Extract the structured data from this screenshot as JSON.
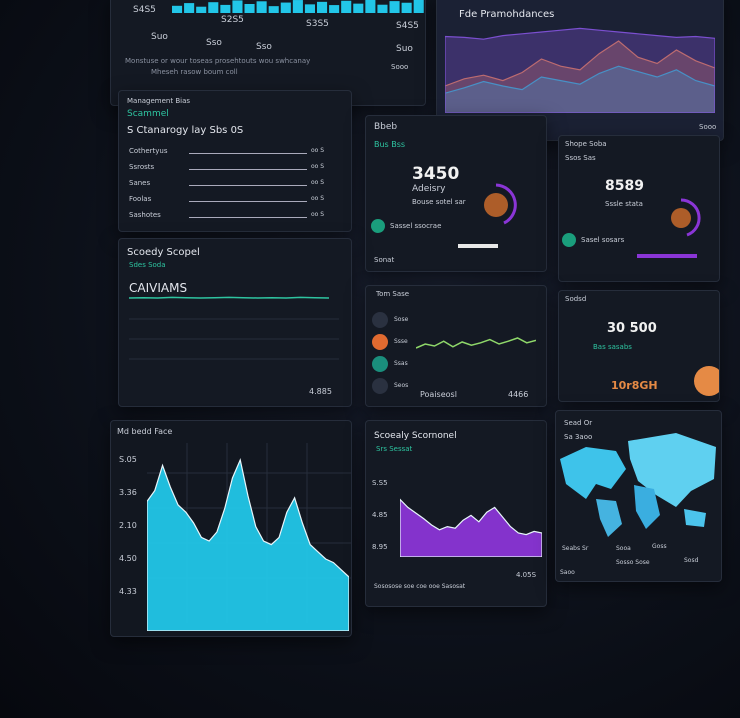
{
  "overview": {
    "ticks": [
      "S4S5",
      "S2S5",
      "S3S5",
      "S4S5"
    ],
    "labels": [
      "Suo",
      "Sso",
      "Sso",
      "Suo"
    ],
    "note": "Monstuse or wour toseas prosehtouts wou swhcanay",
    "note2": "Mheseh rasow boum coll",
    "link": "Sooo",
    "chart": {
      "type": "bar",
      "color": "#22c6e8",
      "ylim": [
        0,
        100
      ],
      "values": [
        40,
        55,
        35,
        60,
        45,
        70,
        50,
        65,
        38,
        58,
        72,
        48,
        62,
        44,
        68,
        52,
        75,
        46,
        66,
        57,
        80,
        50,
        70,
        62
      ]
    }
  },
  "trends": {
    "title": "Fde Pramohdances",
    "link": "Sooo",
    "chart": {
      "type": "area",
      "ylim": [
        0,
        100
      ],
      "series": [
        {
          "color": "#e07a3c",
          "values": [
            30,
            38,
            42,
            36,
            45,
            60,
            52,
            48,
            66,
            80,
            62,
            55,
            70,
            58,
            50
          ]
        },
        {
          "color": "#2bb3c0",
          "values": [
            22,
            28,
            35,
            30,
            26,
            40,
            36,
            32,
            44,
            52,
            46,
            40,
            48,
            36,
            30
          ]
        },
        {
          "color": "#7b4fd0",
          "values": [
            85,
            84,
            82,
            86,
            88,
            90,
            92,
            94,
            92,
            90,
            88,
            86,
            84,
            85,
            83
          ]
        }
      ]
    }
  },
  "management": {
    "title": "Management Bias",
    "subtitle": "Scammel",
    "heading": "S Ctanarogy lay Sbs 0S",
    "rows": [
      {
        "label": "Cothertyus",
        "value": "oo S"
      },
      {
        "label": "Ssrosts",
        "value": "oo S"
      },
      {
        "label": "Sanes",
        "value": "oo S"
      },
      {
        "label": "Foolas",
        "value": "oo S"
      },
      {
        "label": "Sashotes",
        "value": "oo S"
      }
    ]
  },
  "accuracy": {
    "title": "Bbeb",
    "tag": "Bus Bss",
    "value": "3450",
    "label": "Adeisry",
    "sub": "Bouse sotel sar",
    "badge": "Sassel ssocrae",
    "footer": "Sonat"
  },
  "score": {
    "title": "Shope Soba",
    "tags": "Ssos Sas",
    "value": "8589",
    "sub": "Sssle stata",
    "badge": "Sasel sosars"
  },
  "spend": {
    "title": "Scoedy Scopel",
    "sub": "Sdes Soda",
    "heading": "CAIVIAMS",
    "total": "4.885",
    "chart": {
      "type": "line",
      "color": "#2ec4a0",
      "ylim": [
        0,
        100
      ],
      "values": [
        60,
        61,
        60,
        62,
        61,
        60,
        61,
        62,
        61,
        60,
        61,
        60,
        62,
        61,
        60
      ]
    }
  },
  "flow": {
    "title": "Tom Sase",
    "items": [
      "Sose",
      "Ssse",
      "Ssas",
      "Seos"
    ],
    "footer": "Poaiseosl",
    "total": "4466",
    "chart": {
      "type": "line",
      "color": "#8fd86a",
      "ylim": [
        0,
        100
      ],
      "values": [
        45,
        55,
        50,
        62,
        48,
        60,
        52,
        58,
        66,
        55,
        62,
        70,
        58,
        64
      ]
    }
  },
  "sales": {
    "title": "Sodsd",
    "value": "30 500",
    "sub": "Bas sasabs",
    "footer": "10r8GH"
  },
  "volume": {
    "title": "Md bedd Face",
    "ticks": [
      "S.05",
      "3.36",
      "2.10",
      "4.50",
      "4.33"
    ],
    "chart": {
      "type": "area",
      "color": "#22c6e8",
      "ylim": [
        0,
        100
      ],
      "values": [
        72,
        78,
        92,
        80,
        70,
        66,
        60,
        52,
        50,
        55,
        68,
        85,
        95,
        75,
        58,
        50,
        48,
        52,
        66,
        74,
        60,
        48,
        44,
        40,
        38,
        34,
        30
      ]
    }
  },
  "activity": {
    "title": "Scoealy Scornonel",
    "sub": "Srs Sessat",
    "ticks": [
      "S.S5",
      "4.85",
      "8.95"
    ],
    "note": "Sososose soe coe ooe Sasosat",
    "total": "4.05S",
    "chart": {
      "type": "area",
      "color": "#8a35d6",
      "ylim": [
        0,
        100
      ],
      "values": [
        72,
        62,
        55,
        48,
        40,
        34,
        38,
        36,
        46,
        52,
        44,
        56,
        62,
        50,
        38,
        30,
        28,
        32,
        30
      ]
    }
  },
  "map": {
    "title": "Sead Or",
    "sub": "Sa 3aoo",
    "labels": [
      "Seabs Sr",
      "Sooa",
      "Goss"
    ],
    "footer": [
      "Saoo",
      "Sosso Sose",
      "Sosd"
    ]
  }
}
